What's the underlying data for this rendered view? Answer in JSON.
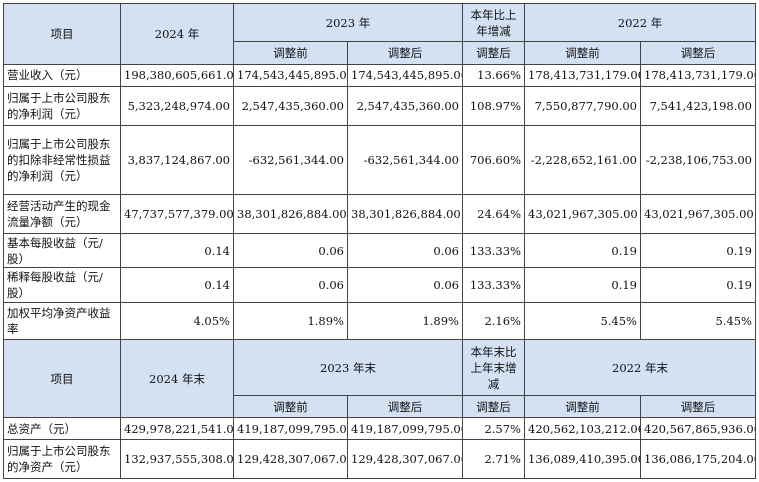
{
  "header1": {
    "item": "项目",
    "y2024": "2024 年",
    "y2023": "2023 年",
    "yoy": "本年比上年增减",
    "y2022": "2022 年",
    "before": "调整前",
    "after": "调整后"
  },
  "header2": {
    "item": "项目",
    "y2024": "2024 年末",
    "y2023": "2023 年末",
    "yoy": "本年末比上年末增减",
    "y2022": "2022 年末",
    "before": "调整前",
    "after": "调整后"
  },
  "rows1": [
    {
      "label": "营业收入（元）",
      "v2024": "198,380,605,661.00",
      "v2023a": "174,543,445,895.00",
      "v2023b": "174,543,445,895.00",
      "chg": "13.66%",
      "v2022a": "178,413,731,179.00",
      "v2022b": "178,413,731,179.00"
    },
    {
      "label": "归属于上市公司股东的净利润（元）",
      "v2024": "5,323,248,974.00",
      "v2023a": "2,547,435,360.00",
      "v2023b": "2,547,435,360.00",
      "chg": "108.97%",
      "v2022a": "7,550,877,790.00",
      "v2022b": "7,541,423,198.00"
    },
    {
      "label": "归属于上市公司股东的扣除非经常性损益的净利润（元）",
      "v2024": "3,837,124,867.00",
      "v2023a": "-632,561,344.00",
      "v2023b": "-632,561,344.00",
      "chg": "706.60%",
      "v2022a": "-2,228,652,161.00",
      "v2022b": "-2,238,106,753.00"
    },
    {
      "label": "经营活动产生的现金流量净额（元）",
      "v2024": "47,737,577,379.00",
      "v2023a": "38,301,826,884.00",
      "v2023b": "38,301,826,884.00",
      "chg": "24.64%",
      "v2022a": "43,021,967,305.00",
      "v2022b": "43,021,967,305.00"
    },
    {
      "label": "基本每股收益（元/股）",
      "v2024": "0.14",
      "v2023a": "0.06",
      "v2023b": "0.06",
      "chg": "133.33%",
      "v2022a": "0.19",
      "v2022b": "0.19"
    },
    {
      "label": "稀释每股收益（元/股）",
      "v2024": "0.14",
      "v2023a": "0.06",
      "v2023b": "0.06",
      "chg": "133.33%",
      "v2022a": "0.19",
      "v2022b": "0.19"
    },
    {
      "label": "加权平均净资产收益率",
      "v2024": "4.05%",
      "v2023a": "1.89%",
      "v2023b": "1.89%",
      "chg": "2.16%",
      "v2022a": "5.45%",
      "v2022b": "5.45%"
    }
  ],
  "rows2": [
    {
      "label": "总资产（元）",
      "v2024": "429,978,221,541.00",
      "v2023a": "419,187,099,795.00",
      "v2023b": "419,187,099,795.00",
      "chg": "2.57%",
      "v2022a": "420,562,103,212.00",
      "v2022b": "420,567,865,936.00"
    },
    {
      "label": "归属于上市公司股东的净资产（元）",
      "v2024": "132,937,555,308.00",
      "v2023a": "129,428,307,067.00",
      "v2023b": "129,428,307,067.00",
      "chg": "2.71%",
      "v2022a": "136,089,410,395.00",
      "v2022b": "136,086,175,204.00"
    }
  ]
}
